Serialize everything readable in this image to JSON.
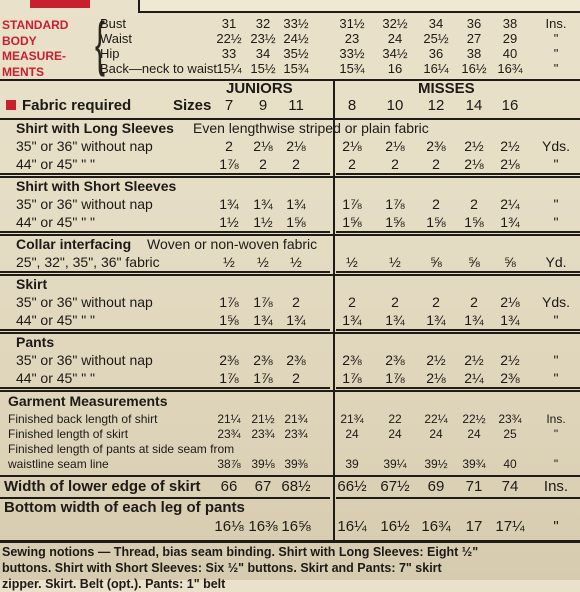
{
  "measurements": {
    "label_lines": [
      "STANDARD",
      "BODY",
      "MEASURE-",
      "MENTS"
    ],
    "rows": [
      {
        "name": "Bust",
        "j": [
          "31",
          "32",
          "33½"
        ],
        "m": [
          "31½",
          "32½",
          "34",
          "36",
          "38"
        ],
        "unit": "Ins."
      },
      {
        "name": "Waist",
        "j": [
          "22½",
          "23½",
          "24½"
        ],
        "m": [
          "23",
          "24",
          "25½",
          "27",
          "29"
        ],
        "unit": "\""
      },
      {
        "name": "Hip",
        "j": [
          "33",
          "34",
          "35½"
        ],
        "m": [
          "33½",
          "34½",
          "36",
          "38",
          "40"
        ],
        "unit": "\""
      },
      {
        "name": "Back—neck to waist",
        "j": [
          "15¼",
          "15½",
          "15¾"
        ],
        "m": [
          "15¾",
          "16",
          "16¼",
          "16½",
          "16¾"
        ],
        "unit": "\""
      }
    ]
  },
  "groups": {
    "juniors": "JUNIORS",
    "misses": "MISSES"
  },
  "fabric_required": {
    "label": "Fabric required",
    "sizes_label": "Sizes",
    "junior_sizes": [
      "7",
      "9",
      "11"
    ],
    "misses_sizes": [
      "8",
      "10",
      "12",
      "14",
      "16"
    ]
  },
  "sections": [
    {
      "title": "Shirt with Long Sleeves",
      "subtitle": "Even lengthwise striped or plain fabric",
      "rows": [
        {
          "label": "35\" or 36\" without nap",
          "j": [
            "2",
            "2⅛",
            "2⅛"
          ],
          "m": [
            "2⅛",
            "2⅛",
            "2⅜",
            "2½",
            "2½"
          ],
          "unit": "Yds."
        },
        {
          "label": "44\" or 45\"   \"   \"",
          "j": [
            "1⅞",
            "2",
            "2"
          ],
          "m": [
            "2",
            "2",
            "2",
            "2⅛",
            "2⅛"
          ],
          "unit": "\""
        }
      ]
    },
    {
      "title": "Shirt with Short Sleeves",
      "subtitle": "",
      "rows": [
        {
          "label": "35\" or 36\" without nap",
          "j": [
            "1¾",
            "1¾",
            "1¾"
          ],
          "m": [
            "1⅞",
            "1⅞",
            "2",
            "2",
            "2¼"
          ],
          "unit": "\""
        },
        {
          "label": "44\" or 45\"   \"   \"",
          "j": [
            "1½",
            "1½",
            "1⅝"
          ],
          "m": [
            "1⅝",
            "1⅝",
            "1⅝",
            "1⅝",
            "1¾"
          ],
          "unit": "\""
        }
      ]
    },
    {
      "title": "Collar interfacing",
      "subtitle": "Woven or non-woven fabric",
      "rows": [
        {
          "label": "25\", 32\", 35\", 36\" fabric",
          "j": [
            "½",
            "½",
            "½"
          ],
          "m": [
            "½",
            "½",
            "⅝",
            "⅝",
            "⅝"
          ],
          "unit": "Yd."
        }
      ]
    },
    {
      "title": "Skirt",
      "subtitle": "",
      "rows": [
        {
          "label": "35\" or 36\" without nap",
          "j": [
            "1⅞",
            "1⅞",
            "2"
          ],
          "m": [
            "2",
            "2",
            "2",
            "2",
            "2⅛"
          ],
          "unit": "Yds."
        },
        {
          "label": "44\" or 45\"   \"   \"",
          "j": [
            "1⅝",
            "1¾",
            "1¾"
          ],
          "m": [
            "1¾",
            "1¾",
            "1¾",
            "1¾",
            "1¾"
          ],
          "unit": "\""
        }
      ]
    },
    {
      "title": "Pants",
      "subtitle": "",
      "rows": [
        {
          "label": "35\" or 36\" without nap",
          "j": [
            "2⅜",
            "2⅜",
            "2⅜"
          ],
          "m": [
            "2⅜",
            "2⅜",
            "2½",
            "2½",
            "2½"
          ],
          "unit": "\""
        },
        {
          "label": "44\" or 45\"   \"   \"",
          "j": [
            "1⅞",
            "1⅞",
            "2"
          ],
          "m": [
            "1⅞",
            "1⅞",
            "2⅛",
            "2¼",
            "2⅜"
          ],
          "unit": "\""
        }
      ]
    }
  ],
  "garment": {
    "title": "Garment Measurements",
    "rows": [
      {
        "label": "Finished back length of shirt",
        "j": [
          "21¼",
          "21½",
          "21¾"
        ],
        "m": [
          "21¾",
          "22",
          "22¼",
          "22½",
          "23¾"
        ],
        "unit": "Ins."
      },
      {
        "label": "Finished length of skirt",
        "j": [
          "23¾",
          "23¾",
          "23¾"
        ],
        "m": [
          "24",
          "24",
          "24",
          "24",
          "25"
        ],
        "unit": "\""
      }
    ],
    "pants_label_1": "Finished length of pants at side seam from",
    "pants_label_2": "waistline seam line",
    "pants_row": {
      "j": [
        "38⅞",
        "39⅛",
        "39⅜"
      ],
      "m": [
        "39",
        "39¼",
        "39½",
        "39¾",
        "40"
      ],
      "unit": "\""
    }
  },
  "skirt_width": {
    "label": "Width of lower edge of skirt",
    "j": [
      "66",
      "67",
      "68½"
    ],
    "m": [
      "66½",
      "67½",
      "69",
      "71",
      "74"
    ],
    "unit": "Ins."
  },
  "pants_width": {
    "label": "Bottom width of each leg of pants",
    "j": [
      "16⅛",
      "16⅜",
      "16⅝"
    ],
    "m": [
      "16¼",
      "16½",
      "16¾",
      "17",
      "17¼"
    ],
    "unit": "\""
  },
  "notions": {
    "line1": "Sewing notions — Thread, bias seam binding. Shirt with Long Sleeves: Eight ½\"",
    "line2": "buttons. Shirt with Short Sleeves: Six ½\" buttons. Skirt and Pants: 7\" skirt",
    "line3": "zipper. Skirt. Belt (opt.). Pants: 1\" belt"
  }
}
